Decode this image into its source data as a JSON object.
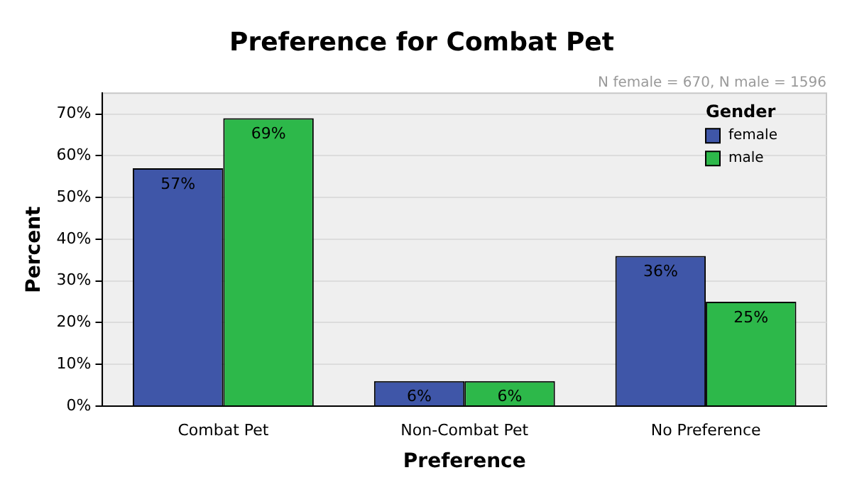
{
  "chart_data": {
    "type": "bar",
    "title": "Preference for Combat Pet",
    "xlabel": "Preference",
    "ylabel": "Percent",
    "legend_title": "Gender",
    "annotations": [
      "N female = 670, N male = 1596"
    ],
    "categories": [
      "Combat Pet",
      "Non-Combat Pet",
      "No Preference"
    ],
    "series": [
      {
        "name": "female",
        "color": "#3f56a8",
        "values": [
          57,
          6,
          36
        ],
        "value_labels": [
          "57%",
          "6%",
          "36%"
        ]
      },
      {
        "name": "male",
        "color": "#2db84a",
        "values": [
          69,
          6,
          25
        ],
        "value_labels": [
          "69%",
          "6%",
          "25%"
        ]
      }
    ],
    "ylim": [
      0,
      75
    ],
    "yticks": [
      {
        "value": 0,
        "label": "0%"
      },
      {
        "value": 10,
        "label": "10%"
      },
      {
        "value": 20,
        "label": "20%"
      },
      {
        "value": 30,
        "label": "30%"
      },
      {
        "value": 40,
        "label": "40%"
      },
      {
        "value": 50,
        "label": "50%"
      },
      {
        "value": 60,
        "label": "60%"
      },
      {
        "value": 70,
        "label": "70%"
      }
    ],
    "grid": "y",
    "legend": "top right"
  }
}
